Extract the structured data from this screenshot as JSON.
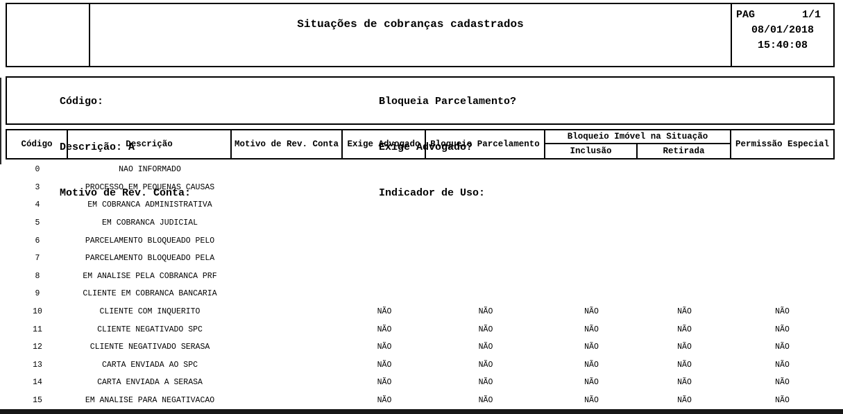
{
  "header": {
    "title": "Situações de cobranças cadastrados",
    "pag_label": "PAG",
    "pag_value": "1/1",
    "date": "08/01/2018",
    "time": "15:40:08"
  },
  "filters": {
    "left": [
      {
        "label": "Código:",
        "value": ""
      },
      {
        "label": "Descrição:",
        "value": "A"
      },
      {
        "label": "Motivo de Rev. Conta:",
        "value": ""
      }
    ],
    "right": [
      {
        "label": "Bloqueia Parcelamento?",
        "value": ""
      },
      {
        "label": "Exige Advogado?",
        "value": ""
      },
      {
        "label": "Indicador de Uso:",
        "value": ""
      }
    ]
  },
  "table": {
    "headers": {
      "codigo": "Código",
      "descricao": "Descrição",
      "motivo": "Motivo de Rev. Conta",
      "exige_advogado": "Exige Advogado",
      "bloqueio_parcelamento": "Bloqueio Parcelamento",
      "bloqueio_imovel_group": "Bloqueio Imóvel na Situação",
      "inclusao": "Inclusão",
      "retirada": "Retirada",
      "permissao_especial": "Permissão Especial"
    },
    "rows": [
      {
        "codigo": "0",
        "descricao": "NAO INFORMADO",
        "motivo": "",
        "exige_advogado": "",
        "bloqueio_parcelamento": "",
        "inclusao": "",
        "retirada": "",
        "permissao_especial": ""
      },
      {
        "codigo": "3",
        "descricao": "PROCESSO EM PEQUENAS CAUSAS",
        "motivo": "",
        "exige_advogado": "",
        "bloqueio_parcelamento": "",
        "inclusao": "",
        "retirada": "",
        "permissao_especial": ""
      },
      {
        "codigo": "4",
        "descricao": "EM COBRANCA ADMINISTRATIVA",
        "motivo": "",
        "exige_advogado": "",
        "bloqueio_parcelamento": "",
        "inclusao": "",
        "retirada": "",
        "permissao_especial": ""
      },
      {
        "codigo": "5",
        "descricao": "EM COBRANCA JUDICIAL",
        "motivo": "",
        "exige_advogado": "",
        "bloqueio_parcelamento": "",
        "inclusao": "",
        "retirada": "",
        "permissao_especial": ""
      },
      {
        "codigo": "6",
        "descricao": "PARCELAMENTO BLOQUEADO PELO",
        "motivo": "",
        "exige_advogado": "",
        "bloqueio_parcelamento": "",
        "inclusao": "",
        "retirada": "",
        "permissao_especial": ""
      },
      {
        "codigo": "7",
        "descricao": "PARCELAMENTO BLOQUEADO PELA",
        "motivo": "",
        "exige_advogado": "",
        "bloqueio_parcelamento": "",
        "inclusao": "",
        "retirada": "",
        "permissao_especial": ""
      },
      {
        "codigo": "8",
        "descricao": "EM ANALISE PELA COBRANCA PRF",
        "motivo": "",
        "exige_advogado": "",
        "bloqueio_parcelamento": "",
        "inclusao": "",
        "retirada": "",
        "permissao_especial": ""
      },
      {
        "codigo": "9",
        "descricao": "CLIENTE EM COBRANCA BANCARIA",
        "motivo": "",
        "exige_advogado": "",
        "bloqueio_parcelamento": "",
        "inclusao": "",
        "retirada": "",
        "permissao_especial": ""
      },
      {
        "codigo": "10",
        "descricao": "CLIENTE COM INQUERITO",
        "motivo": "",
        "exige_advogado": "NÃO",
        "bloqueio_parcelamento": "NÃO",
        "inclusao": "NÃO",
        "retirada": "NÃO",
        "permissao_especial": "NÃO"
      },
      {
        "codigo": "11",
        "descricao": "CLIENTE NEGATIVADO SPC",
        "motivo": "",
        "exige_advogado": "NÃO",
        "bloqueio_parcelamento": "NÃO",
        "inclusao": "NÃO",
        "retirada": "NÃO",
        "permissao_especial": "NÃO"
      },
      {
        "codigo": "12",
        "descricao": "CLIENTE NEGATIVADO SERASA",
        "motivo": "",
        "exige_advogado": "NÃO",
        "bloqueio_parcelamento": "NÃO",
        "inclusao": "NÃO",
        "retirada": "NÃO",
        "permissao_especial": "NÃO"
      },
      {
        "codigo": "13",
        "descricao": "CARTA ENVIADA AO SPC",
        "motivo": "",
        "exige_advogado": "NÃO",
        "bloqueio_parcelamento": "NÃO",
        "inclusao": "NÃO",
        "retirada": "NÃO",
        "permissao_especial": "NÃO"
      },
      {
        "codigo": "14",
        "descricao": "CARTA ENVIADA A SERASA",
        "motivo": "",
        "exige_advogado": "NÃO",
        "bloqueio_parcelamento": "NÃO",
        "inclusao": "NÃO",
        "retirada": "NÃO",
        "permissao_especial": "NÃO"
      },
      {
        "codigo": "15",
        "descricao": "EM ANALISE PARA NEGATIVACAO",
        "motivo": "",
        "exige_advogado": "NÃO",
        "bloqueio_parcelamento": "NÃO",
        "inclusao": "NÃO",
        "retirada": "NÃO",
        "permissao_especial": "NÃO"
      }
    ]
  }
}
